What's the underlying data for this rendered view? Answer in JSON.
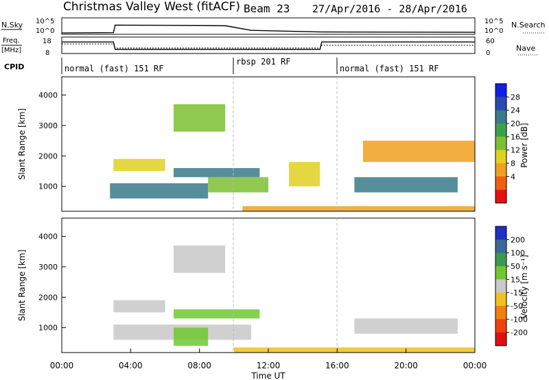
{
  "header": {
    "title": "Christmas Valley West (fitACF)",
    "beam": "Beam 23",
    "date_range": "27/Apr/2016 - 28/Apr/2016"
  },
  "noise_panel": {
    "left_label": "N.Sky",
    "right_label": "N.Search",
    "ticks_left": [
      "10^5",
      "10^0"
    ],
    "ticks_right": [
      "10^5",
      "10^0"
    ]
  },
  "freq_panel": {
    "left_label_1": "Freq.",
    "left_label_2": "[MHz]",
    "right_label": "Nave",
    "ticks_left": [
      "18",
      "8"
    ],
    "ticks_right": [
      "60",
      "0"
    ]
  },
  "cpid": {
    "label": "CPID",
    "segments": [
      {
        "text": "normal (fast) 151 RF",
        "start": 0,
        "end": 10
      },
      {
        "text": "rbsp 201 RF",
        "start": 10,
        "end": 15
      },
      {
        "text": "normal (fast) 151 RF",
        "start": 15,
        "end": 24
      }
    ]
  },
  "axes": {
    "ylabel": "Slant Range [km]",
    "xlabel": "Time UT",
    "yticks": [
      "4000",
      "3000",
      "2000",
      "1000"
    ],
    "xticks": [
      "00:00",
      "04:00",
      "08:00",
      "12:00",
      "16:00",
      "20:00",
      "00:00"
    ]
  },
  "power_colorbar": {
    "label": "Power [dB]",
    "ticks": [
      "28",
      "24",
      "20",
      "16",
      "12",
      "8",
      "4"
    ],
    "colors": [
      "#1020e8",
      "#2a4ab0",
      "#3a7a8a",
      "#3aa050",
      "#7cc030",
      "#e0d020",
      "#f0a020",
      "#f06010",
      "#e81010"
    ]
  },
  "velocity_colorbar": {
    "label": "Velocity [m s⁻¹]",
    "ticks": [
      "200",
      "100",
      "50",
      "15",
      "-15",
      "-50",
      "-100",
      "-200"
    ],
    "colors": [
      "#2030c0",
      "#3a6a9a",
      "#3a9a50",
      "#70c830",
      "#c8c8c8",
      "#f0c020",
      "#f08010",
      "#f04010",
      "#e01010"
    ]
  },
  "chart_data": {
    "type": "heatmap",
    "title": "Christmas Valley West (fitACF)",
    "subtitle": "Beam 23 27/Apr/2016 - 28/Apr/2016",
    "xlabel": "Time UT",
    "ylabel": "Slant Range [km]",
    "xlim": [
      0,
      24
    ],
    "ylim": [
      180,
      4600
    ],
    "series": [
      {
        "name": "Power [dB]",
        "clim": [
          0,
          30
        ],
        "colorbar_ticks": [
          4,
          8,
          12,
          16,
          20,
          24,
          28
        ],
        "regions": [
          {
            "t": [
              2.8,
              8.5
            ],
            "r": [
              600,
              1100
            ],
            "value": 22
          },
          {
            "t": [
              8.5,
              12.0
            ],
            "r": [
              800,
              1300
            ],
            "value": 14
          },
          {
            "t": [
              3.0,
              6.0
            ],
            "r": [
              1500,
              1900
            ],
            "value": 12
          },
          {
            "t": [
              6.5,
              9.5
            ],
            "r": [
              2800,
              3700
            ],
            "value": 16
          },
          {
            "t": [
              6.5,
              11.5
            ],
            "r": [
              1300,
              1600
            ],
            "value": 20
          },
          {
            "t": [
              13.2,
              15.0
            ],
            "r": [
              1000,
              1800
            ],
            "value": 10
          },
          {
            "t": [
              17.0,
              23.0
            ],
            "r": [
              800,
              1300
            ],
            "value": 20
          },
          {
            "t": [
              17.5,
              24.0
            ],
            "r": [
              1800,
              2500
            ],
            "value": 8
          },
          {
            "t": [
              10.5,
              24.0
            ],
            "r": [
              180,
              350
            ],
            "value": 8
          }
        ]
      },
      {
        "name": "Velocity [m s-1]",
        "clim": [
          -200,
          200
        ],
        "colorbar_ticks": [
          -200,
          -100,
          -50,
          -15,
          15,
          50,
          100,
          200
        ],
        "regions": [
          {
            "t": [
              3.0,
              11.0
            ],
            "r": [
              600,
              1100
            ],
            "value": 0
          },
          {
            "t": [
              6.5,
              8.5
            ],
            "r": [
              400,
              1000
            ],
            "value": 30
          },
          {
            "t": [
              6.5,
              9.5
            ],
            "r": [
              2800,
              3700
            ],
            "value": 0
          },
          {
            "t": [
              6.5,
              11.5
            ],
            "r": [
              1300,
              1600
            ],
            "value": 60
          },
          {
            "t": [
              3.0,
              6.0
            ],
            "r": [
              1500,
              1900
            ],
            "value": 0
          },
          {
            "t": [
              17.0,
              23.0
            ],
            "r": [
              800,
              1300
            ],
            "value": 0
          },
          {
            "t": [
              10.0,
              24.0
            ],
            "r": [
              180,
              350
            ],
            "value": -30
          }
        ]
      }
    ],
    "noise_sky_log10": [
      {
        "t": 0,
        "v": 0.4
      },
      {
        "t": 3,
        "v": 0.5
      },
      {
        "t": 3.1,
        "v": 2.8
      },
      {
        "t": 9.5,
        "v": 2.6
      },
      {
        "t": 11.0,
        "v": 1.2
      },
      {
        "t": 15.0,
        "v": 0.7
      },
      {
        "t": 24,
        "v": 0.6
      }
    ],
    "frequency_mhz": [
      {
        "t": 0,
        "v": 15.0
      },
      {
        "t": 3.0,
        "v": 15.0
      },
      {
        "t": 3.1,
        "v": 10.5
      },
      {
        "t": 15.0,
        "v": 10.5
      },
      {
        "t": 15.1,
        "v": 15.0
      },
      {
        "t": 24,
        "v": 15.0
      }
    ],
    "nave": [
      {
        "t": 0,
        "v": 35
      },
      {
        "t": 3.0,
        "v": 35
      },
      {
        "t": 3.1,
        "v": 20
      },
      {
        "t": 15.0,
        "v": 20
      },
      {
        "t": 15.1,
        "v": 30
      },
      {
        "t": 24,
        "v": 30
      }
    ]
  }
}
